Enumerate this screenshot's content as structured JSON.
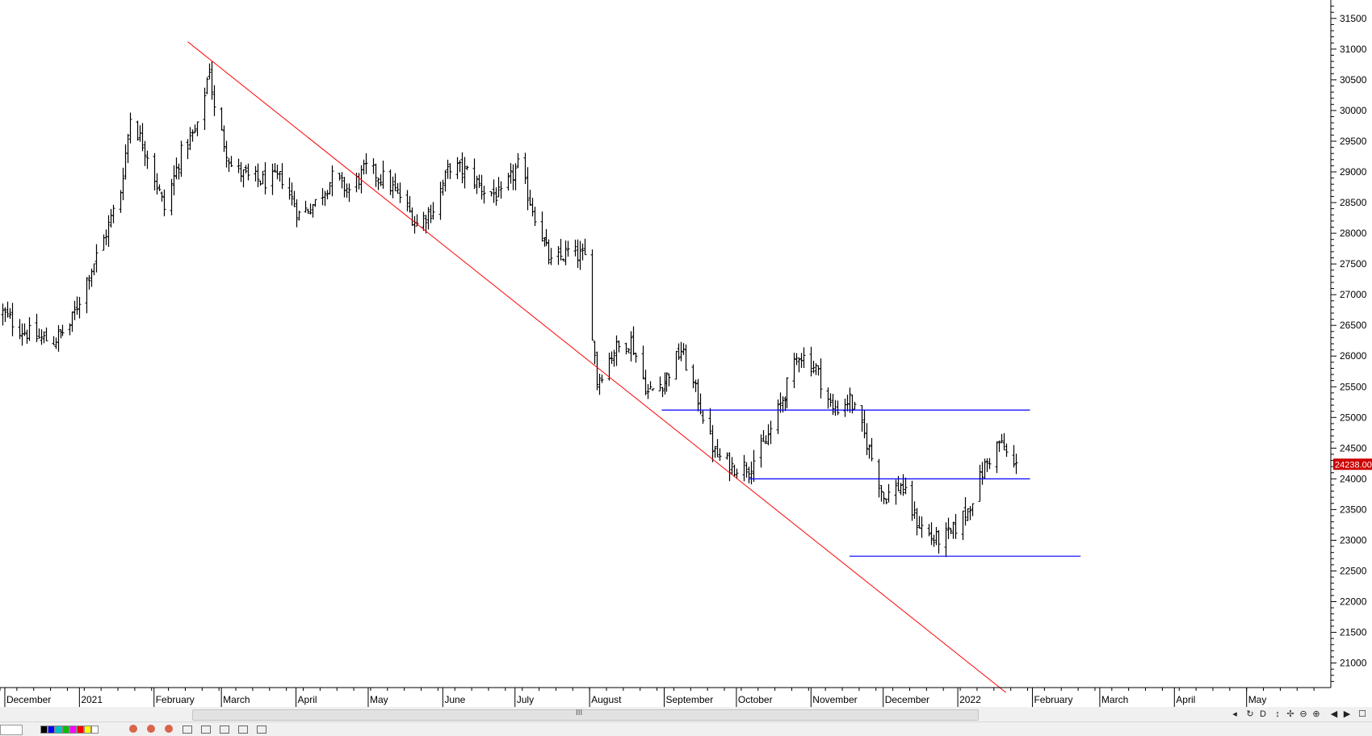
{
  "chart_data": {
    "type": "ohlc",
    "title": "",
    "xlabel": "",
    "ylabel": "",
    "y_range": [
      20600,
      31800
    ],
    "y_ticks": [
      21000,
      21500,
      22000,
      22500,
      23000,
      23500,
      24000,
      24500,
      25000,
      25500,
      26000,
      26500,
      27000,
      27500,
      28000,
      28500,
      29000,
      29500,
      30000,
      30500,
      31000,
      31500
    ],
    "x_range": [
      "2020-11-29",
      "2022-06-05"
    ],
    "month_labels": [
      {
        "label": "December",
        "date": "2020-12-01"
      },
      {
        "label": "2021",
        "date": "2021-01-01"
      },
      {
        "label": "February",
        "date": "2021-02-01"
      },
      {
        "label": "March",
        "date": "2021-03-01"
      },
      {
        "label": "April",
        "date": "2021-04-01"
      },
      {
        "label": "May",
        "date": "2021-05-01"
      },
      {
        "label": "June",
        "date": "2021-06-01"
      },
      {
        "label": "July",
        "date": "2021-07-01"
      },
      {
        "label": "August",
        "date": "2021-08-01"
      },
      {
        "label": "September",
        "date": "2021-09-01"
      },
      {
        "label": "October",
        "date": "2021-10-01"
      },
      {
        "label": "November",
        "date": "2021-11-01"
      },
      {
        "label": "December",
        "date": "2021-12-01"
      },
      {
        "label": "2022",
        "date": "2022-01-01"
      },
      {
        "label": "February",
        "date": "2022-02-01"
      },
      {
        "label": "March",
        "date": "2022-03-01"
      },
      {
        "label": "April",
        "date": "2022-04-01"
      },
      {
        "label": "May",
        "date": "2022-05-01"
      }
    ],
    "anchor_closes": [
      [
        "2020-11-30",
        26700
      ],
      [
        "2020-12-07",
        26450
      ],
      [
        "2020-12-14",
        26300
      ],
      [
        "2020-12-21",
        26250
      ],
      [
        "2020-12-28",
        26500
      ],
      [
        "2021-01-04",
        27250
      ],
      [
        "2021-01-11",
        27900
      ],
      [
        "2021-01-18",
        28700
      ],
      [
        "2021-01-22",
        29900
      ],
      [
        "2021-01-29",
        29300
      ],
      [
        "2021-02-05",
        28400
      ],
      [
        "2021-02-12",
        29300
      ],
      [
        "2021-02-19",
        29700
      ],
      [
        "2021-02-24",
        30700
      ],
      [
        "2021-02-26",
        30000
      ],
      [
        "2021-03-05",
        29100
      ],
      [
        "2021-03-12",
        28900
      ],
      [
        "2021-03-19",
        28850
      ],
      [
        "2021-03-26",
        28900
      ],
      [
        "2021-04-02",
        28300
      ],
      [
        "2021-04-09",
        28500
      ],
      [
        "2021-04-16",
        28900
      ],
      [
        "2021-04-23",
        28700
      ],
      [
        "2021-04-30",
        29050
      ],
      [
        "2021-05-07",
        28900
      ],
      [
        "2021-05-14",
        28600
      ],
      [
        "2021-05-21",
        28150
      ],
      [
        "2021-05-28",
        28400
      ],
      [
        "2021-06-04",
        29100
      ],
      [
        "2021-06-11",
        29000
      ],
      [
        "2021-06-18",
        28700
      ],
      [
        "2021-06-25",
        28600
      ],
      [
        "2021-07-02",
        29100
      ],
      [
        "2021-07-09",
        28300
      ],
      [
        "2021-07-16",
        27500
      ],
      [
        "2021-07-23",
        27700
      ],
      [
        "2021-07-30",
        27600
      ],
      [
        "2021-08-04",
        25600
      ],
      [
        "2021-08-11",
        26100
      ],
      [
        "2021-08-18",
        26250
      ],
      [
        "2021-08-25",
        25400
      ],
      [
        "2021-09-01",
        25600
      ],
      [
        "2021-09-08",
        26100
      ],
      [
        "2021-09-15",
        25300
      ],
      [
        "2021-09-22",
        24400
      ],
      [
        "2021-09-29",
        24200
      ],
      [
        "2021-10-06",
        24200
      ],
      [
        "2021-10-13",
        24600
      ],
      [
        "2021-10-20",
        25300
      ],
      [
        "2021-10-27",
        26050
      ],
      [
        "2021-11-03",
        25800
      ],
      [
        "2021-11-10",
        25100
      ],
      [
        "2021-11-17",
        25300
      ],
      [
        "2021-11-24",
        24600
      ],
      [
        "2021-12-01",
        23700
      ],
      [
        "2021-12-08",
        23900
      ],
      [
        "2021-12-15",
        23300
      ],
      [
        "2021-12-22",
        23000
      ],
      [
        "2021-12-29",
        23100
      ],
      [
        "2022-01-05",
        23500
      ],
      [
        "2022-01-12",
        24200
      ],
      [
        "2022-01-18",
        24600
      ],
      [
        "2022-01-24",
        24200
      ]
    ],
    "last_price_label": "24238.00",
    "trendline": {
      "color": "#ff0000",
      "from": {
        "date": "2021-02-15",
        "value": 31120
      },
      "to": {
        "date": "2022-01-21",
        "value": 20520
      }
    },
    "horizontal_lines": [
      {
        "color": "#0000ff",
        "value": 25120,
        "from": "2021-08-31",
        "to": "2022-01-31"
      },
      {
        "color": "#0000ff",
        "value": 24000,
        "from": "2021-10-06",
        "to": "2022-01-31"
      },
      {
        "color": "#0000ff",
        "value": 22740,
        "from": "2021-11-17",
        "to": "2022-02-21"
      }
    ],
    "colors": {
      "bars": "#000000",
      "trendline": "#ff0000",
      "support_resistance": "#0000ff",
      "price_tag_bg": "#cc0000",
      "price_tag_text": "#ffffff"
    }
  },
  "toolbar": {
    "scroll_grip": "III",
    "nav_buttons": [
      "◂",
      "↻",
      "D",
      "↕",
      "✢",
      "⊖",
      "⊕",
      "◀",
      "▶",
      "☐"
    ],
    "swatch_colors": [
      "#000000",
      "#0000ff",
      "#00c0c0",
      "#00c000",
      "#ff00ff",
      "#ff0000",
      "#ffff00",
      "#ffffff"
    ]
  }
}
